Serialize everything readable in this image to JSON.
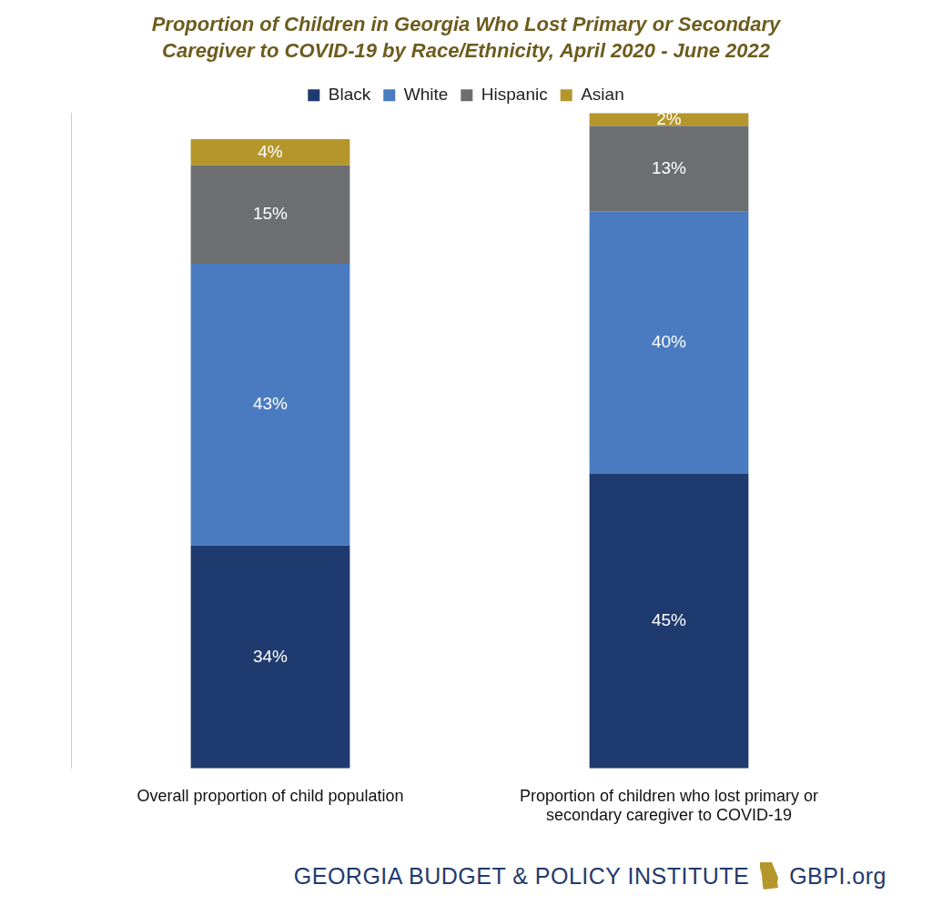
{
  "chart_data": {
    "type": "bar",
    "title": "Proportion of Children in Georgia Who Lost Primary or Secondary Caregiver to COVID-19 by Race/Ethnicity, April 2020 - June 2022",
    "categories": [
      "Overall proportion of child population",
      "Proportion of children who lost primary or secondary caregiver to COVID-19"
    ],
    "series": [
      {
        "name": "Black",
        "color": "#1f3a6e",
        "values": [
          34,
          45
        ],
        "value_labels": [
          "34%",
          "45%"
        ]
      },
      {
        "name": "White",
        "color": "#4a7bc0",
        "values": [
          43,
          40
        ],
        "value_labels": [
          "43%",
          "40%"
        ]
      },
      {
        "name": "Hispanic",
        "color": "#6d6e71",
        "values": [
          15,
          13
        ],
        "value_labels": [
          "15%",
          "13%"
        ]
      },
      {
        "name": "Asian",
        "color": "#b5962a",
        "values": [
          4,
          2
        ],
        "value_labels": [
          "4%",
          "2%"
        ]
      }
    ],
    "ylim": [
      0,
      100
    ],
    "stacked": true,
    "data_labels": true,
    "tick_labels": "x",
    "legend": "top",
    "grid": false,
    "annotations": [
      "GEORGIA BUDGET & POLICY INSTITUTE",
      "GBPI.org"
    ]
  }
}
